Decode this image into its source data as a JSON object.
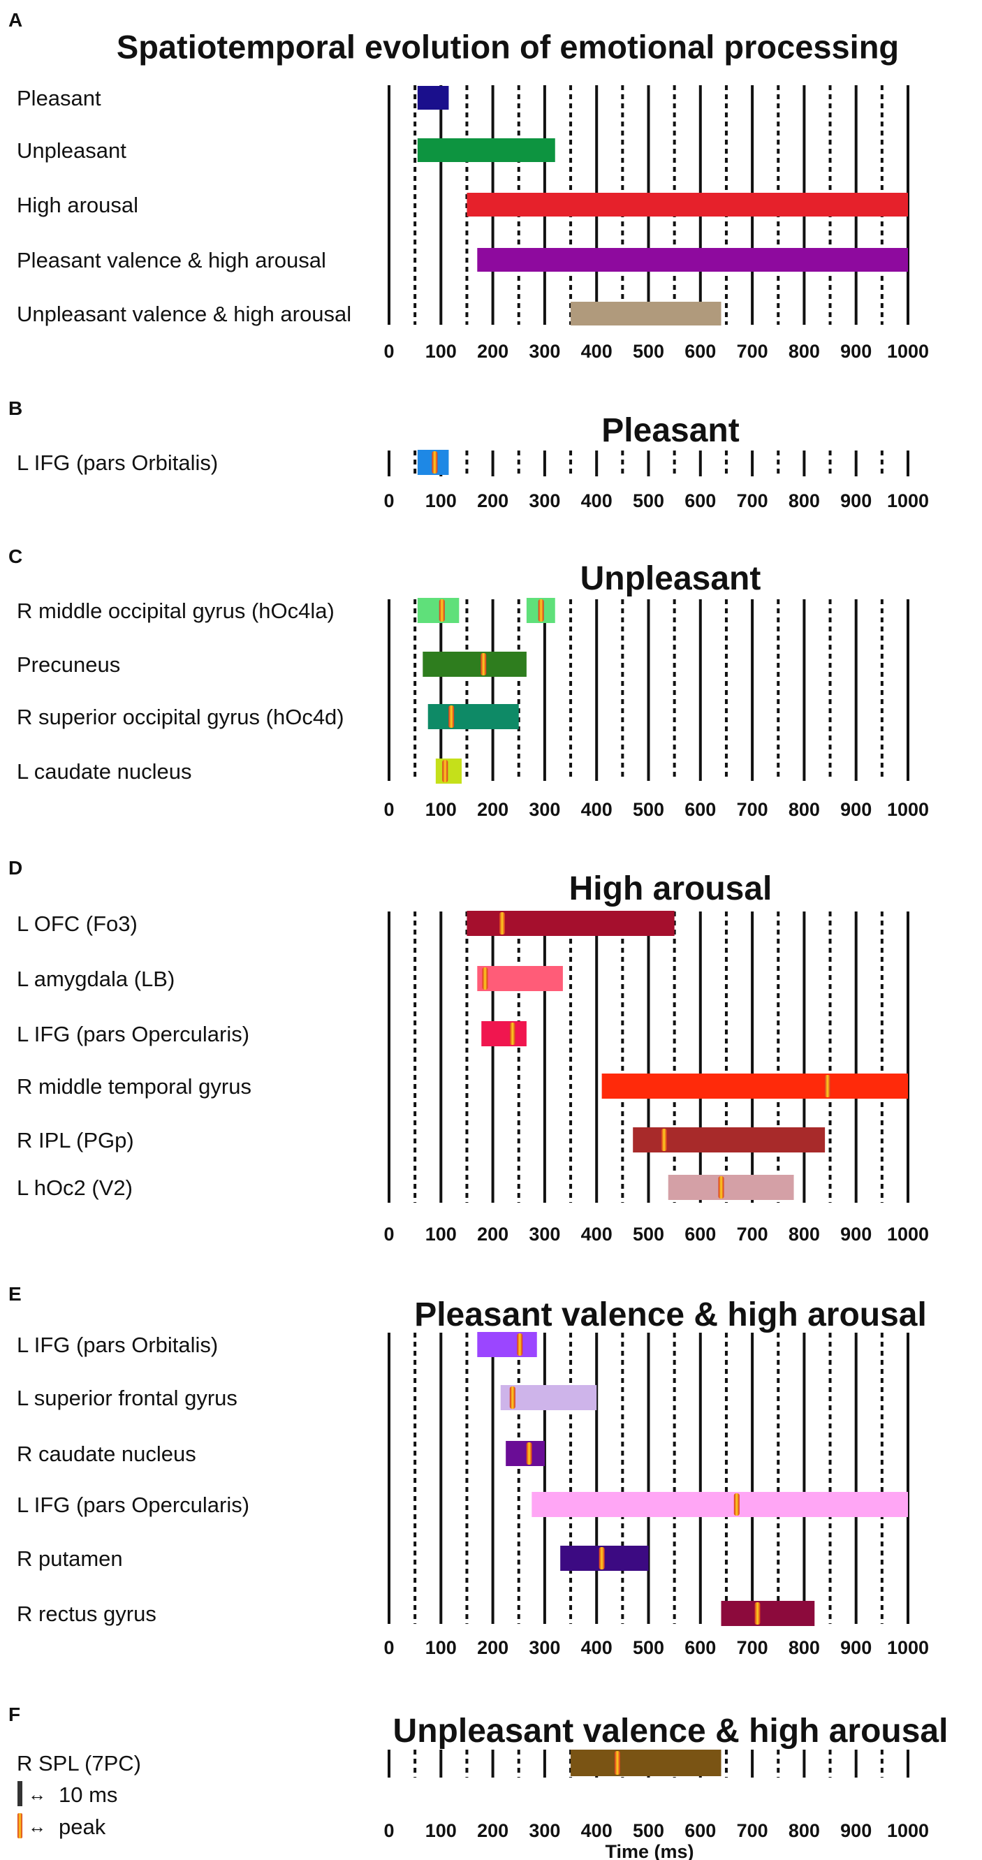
{
  "figure": {
    "time_axis": {
      "min": 0,
      "max": 1000,
      "ticks": [
        0,
        100,
        200,
        300,
        400,
        500,
        600,
        700,
        800,
        900,
        1000
      ],
      "solid_gridlines_every": 100,
      "dotted_gridlines_at": [
        50,
        150,
        250,
        350,
        450,
        550,
        650,
        750,
        850,
        950
      ],
      "xlabel": "Time (ms)"
    },
    "legend": {
      "bar_label": "10 ms",
      "peak_label": "peak"
    }
  },
  "chart_data": [
    {
      "type": "bar",
      "subtype": "timeline",
      "panel": "A",
      "title": "Spatiotemporal evolution of emotional processing",
      "xlim": [
        0,
        1000
      ],
      "series": [
        {
          "name": "Pleasant",
          "start": 55,
          "end": 115,
          "color": "#1a0f8c"
        },
        {
          "name": "Unpleasant",
          "start": 55,
          "end": 320,
          "color": "#0d9440"
        },
        {
          "name": "High arousal",
          "start": 150,
          "end": 1000,
          "color": "#e6212b"
        },
        {
          "name": "Pleasant valence & high arousal",
          "start": 170,
          "end": 1000,
          "color": "#8e0a9e"
        },
        {
          "name": "Unpleasant valence & high arousal",
          "start": 350,
          "end": 640,
          "color": "#b09a7c"
        }
      ]
    },
    {
      "type": "bar",
      "subtype": "timeline",
      "panel": "B",
      "title": "Pleasant",
      "xlim": [
        0,
        1000
      ],
      "series": [
        {
          "name": "L IFG (pars Orbitalis)",
          "start": 55,
          "end": 115,
          "peak": 88,
          "color": "#1e88e5"
        }
      ]
    },
    {
      "type": "bar",
      "subtype": "timeline",
      "panel": "C",
      "title": "Unpleasant",
      "xlim": [
        0,
        1000
      ],
      "series": [
        {
          "name": "R middle occipital gyrus (hOc4la)",
          "segments": [
            {
              "start": 55,
              "end": 135,
              "peak": 102
            },
            {
              "start": 265,
              "end": 320,
              "peak": 293
            }
          ],
          "color": "#5fe07a"
        },
        {
          "name": "Precuneus",
          "start": 65,
          "end": 265,
          "peak": 182,
          "color": "#2e7d1e"
        },
        {
          "name": "R superior occipital gyrus (hOc4d)",
          "start": 75,
          "end": 250,
          "peak": 120,
          "color": "#0e8a66"
        },
        {
          "name": "L  caudate nucleus",
          "start": 90,
          "end": 140,
          "peak": 108,
          "color": "#c5e01a"
        }
      ]
    },
    {
      "type": "bar",
      "subtype": "timeline",
      "panel": "D",
      "title": "High arousal",
      "xlim": [
        0,
        1000
      ],
      "series": [
        {
          "name": "L OFC (Fo3)",
          "start": 150,
          "end": 550,
          "peak": 218,
          "color": "#a50f2d"
        },
        {
          "name": "L amygdala (LB)",
          "start": 170,
          "end": 335,
          "peak": 185,
          "color": "#ff5c78"
        },
        {
          "name": "L IFG (pars Opercularis)",
          "start": 178,
          "end": 265,
          "peak": 238,
          "color": "#f0164f"
        },
        {
          "name": "R middle temporal gyrus",
          "start": 410,
          "end": 1000,
          "peak": 845,
          "color": "#ff2a0a"
        },
        {
          "name": "R IPL (PGp)",
          "start": 470,
          "end": 840,
          "peak": 530,
          "color": "#a82a2a"
        },
        {
          "name": "L hOc2 (V2)",
          "start": 538,
          "end": 780,
          "peak": 640,
          "color": "#d4a0a6"
        }
      ]
    },
    {
      "type": "bar",
      "subtype": "timeline",
      "panel": "E",
      "title": "Pleasant valence & high arousal",
      "xlim": [
        0,
        1000
      ],
      "series": [
        {
          "name": "L IFG (pars Orbitalis)",
          "start": 170,
          "end": 285,
          "peak": 252,
          "color": "#9b46ff"
        },
        {
          "name": "L superior frontal gyrus",
          "start": 215,
          "end": 400,
          "peak": 238,
          "color": "#ceb4ea"
        },
        {
          "name": "R caudate nucleus",
          "start": 225,
          "end": 300,
          "peak": 270,
          "color": "#6a0d96"
        },
        {
          "name": "L IFG (pars Opercularis)",
          "start": 275,
          "end": 1000,
          "peak": 670,
          "color": "#ffa6f5"
        },
        {
          "name": "R putamen",
          "start": 330,
          "end": 500,
          "peak": 410,
          "color": "#3c0a82"
        },
        {
          "name": "R rectus gyrus",
          "start": 640,
          "end": 820,
          "peak": 710,
          "color": "#8c0a3c"
        }
      ]
    },
    {
      "type": "bar",
      "subtype": "timeline",
      "panel": "F",
      "title": "Unpleasant valence & high arousal",
      "xlim": [
        0,
        1000
      ],
      "series": [
        {
          "name": "R SPL (7PC)",
          "start": 350,
          "end": 640,
          "peak": 440,
          "color": "#7a5414"
        }
      ]
    }
  ]
}
